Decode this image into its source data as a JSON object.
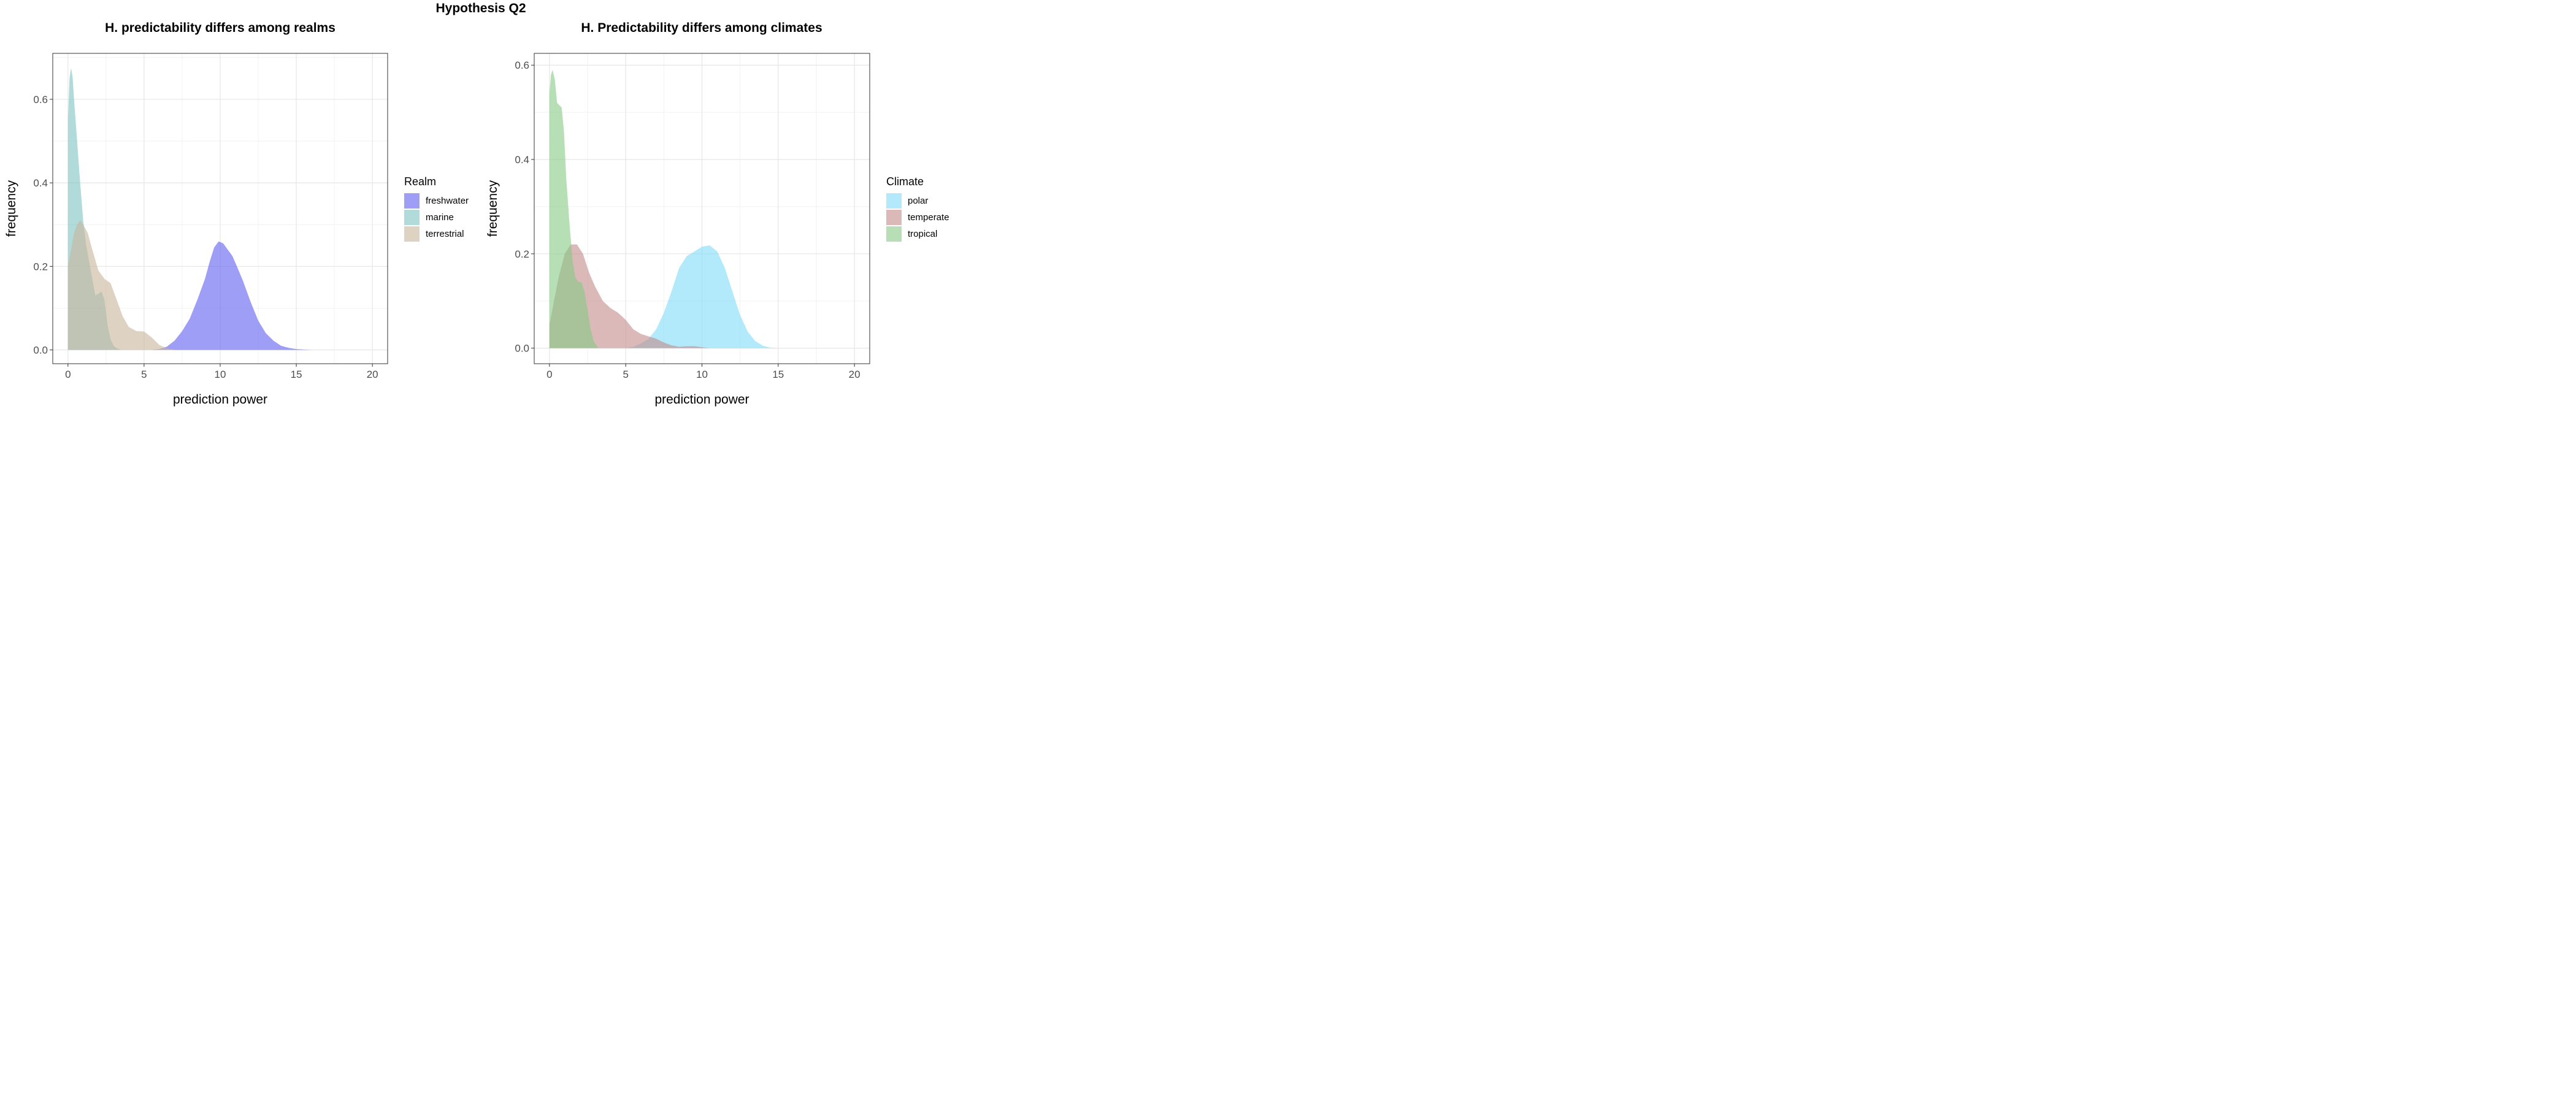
{
  "figure": {
    "suptitle": "Hypothesis Q2"
  },
  "chart_data": [
    {
      "type": "area",
      "title": "H. predictability differs among realms",
      "xlabel": "prediction power",
      "ylabel": "frequency",
      "xlim": [
        -1,
        21
      ],
      "ylim": [
        -0.033,
        0.71
      ],
      "xticks": [
        0,
        5,
        10,
        15,
        20
      ],
      "yticks": [
        0.0,
        0.2,
        0.4,
        0.6
      ],
      "grid": true,
      "legend": {
        "title": "Realm",
        "position": "right"
      },
      "series": [
        {
          "name": "freshwater",
          "color": "#5e5ef2",
          "x": [
            5.5,
            6,
            6.5,
            7,
            7.5,
            8,
            8.5,
            9,
            9.3,
            9.6,
            9.9,
            10.2,
            10.5,
            10.8,
            11.1,
            11.5,
            12,
            12.5,
            13,
            13.5,
            14,
            14.5,
            15,
            15.5,
            16
          ],
          "y": [
            0.0,
            0.002,
            0.008,
            0.022,
            0.045,
            0.075,
            0.12,
            0.17,
            0.21,
            0.245,
            0.26,
            0.255,
            0.24,
            0.225,
            0.2,
            0.165,
            0.115,
            0.07,
            0.04,
            0.022,
            0.01,
            0.005,
            0.002,
            0.001,
            0.0
          ]
        },
        {
          "name": "marine",
          "color": "#7dc2c2",
          "x": [
            0,
            0.1,
            0.2,
            0.3,
            0.4,
            0.6,
            0.8,
            1.0,
            1.2,
            1.4,
            1.6,
            1.8,
            2.0,
            2.2,
            2.4,
            2.6,
            2.8,
            3.0,
            3.2,
            3.5
          ],
          "y": [
            0.55,
            0.65,
            0.675,
            0.655,
            0.6,
            0.5,
            0.4,
            0.31,
            0.25,
            0.21,
            0.17,
            0.13,
            0.135,
            0.14,
            0.12,
            0.06,
            0.025,
            0.01,
            0.004,
            0.0
          ]
        },
        {
          "name": "terrestrial",
          "color": "#c8b59b",
          "x": [
            0,
            0.2,
            0.4,
            0.6,
            0.8,
            1.0,
            1.3,
            1.6,
            2.0,
            2.4,
            2.8,
            3.2,
            3.6,
            4.0,
            4.5,
            5.0,
            5.5,
            6.0,
            6.5,
            7.0
          ],
          "y": [
            0.2,
            0.24,
            0.28,
            0.3,
            0.31,
            0.3,
            0.28,
            0.24,
            0.19,
            0.17,
            0.16,
            0.12,
            0.08,
            0.055,
            0.045,
            0.044,
            0.03,
            0.012,
            0.004,
            0.0
          ]
        }
      ]
    },
    {
      "type": "area",
      "title": "H. Predictability differs among climates",
      "xlabel": "prediction power",
      "ylabel": "frequency",
      "xlim": [
        -1,
        21
      ],
      "ylim": [
        -0.033,
        0.625
      ],
      "xticks": [
        0,
        5,
        10,
        15,
        20
      ],
      "yticks": [
        0.0,
        0.2,
        0.4,
        0.6
      ],
      "grid": true,
      "legend": {
        "title": "Climate",
        "position": "right"
      },
      "series": [
        {
          "name": "polar",
          "color": "#7fdcfa",
          "x": [
            5,
            5.5,
            6,
            6.5,
            7,
            7.5,
            8,
            8.5,
            9,
            9.5,
            10,
            10.5,
            11,
            11.5,
            12,
            12.5,
            13,
            13.5,
            14,
            14.5,
            15
          ],
          "y": [
            0.0,
            0.003,
            0.01,
            0.02,
            0.04,
            0.075,
            0.12,
            0.17,
            0.195,
            0.205,
            0.215,
            0.218,
            0.205,
            0.17,
            0.12,
            0.07,
            0.035,
            0.015,
            0.005,
            0.001,
            0.0
          ]
        },
        {
          "name": "temperate",
          "color": "#c48a8a",
          "x": [
            0,
            0.3,
            0.6,
            1.0,
            1.4,
            1.8,
            2.2,
            2.6,
            3.0,
            3.5,
            4.0,
            4.5,
            5.0,
            5.5,
            6.0,
            6.5,
            7.0,
            7.5,
            8.0,
            8.5,
            9.0,
            9.5,
            10.0,
            10.5
          ],
          "y": [
            0.05,
            0.1,
            0.15,
            0.2,
            0.22,
            0.22,
            0.2,
            0.16,
            0.13,
            0.1,
            0.085,
            0.075,
            0.06,
            0.04,
            0.03,
            0.025,
            0.02,
            0.012,
            0.006,
            0.003,
            0.004,
            0.004,
            0.002,
            0.0
          ]
        },
        {
          "name": "tropical",
          "color": "#85c985",
          "x": [
            0,
            0.1,
            0.2,
            0.35,
            0.5,
            0.65,
            0.8,
            0.95,
            1.1,
            1.3,
            1.5,
            1.7,
            1.9,
            2.1,
            2.3,
            2.5,
            2.7,
            2.9,
            3.2
          ],
          "y": [
            0.54,
            0.58,
            0.59,
            0.57,
            0.52,
            0.515,
            0.51,
            0.46,
            0.36,
            0.27,
            0.19,
            0.15,
            0.14,
            0.14,
            0.12,
            0.08,
            0.04,
            0.015,
            0.0
          ]
        }
      ]
    }
  ]
}
